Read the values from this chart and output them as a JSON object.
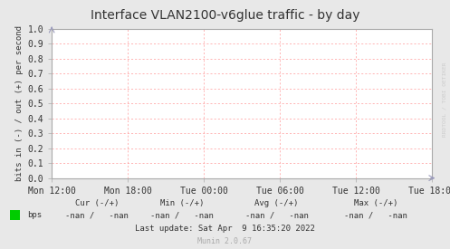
{
  "title": "Interface VLAN2100-v6glue traffic - by day",
  "ylabel": "bits in (-) / out (+) per second",
  "bg_color": "#e8e8e8",
  "plot_bg_color": "#ffffff",
  "grid_color": "#ff9999",
  "border_color": "#aaaaaa",
  "ylim": [
    0.0,
    1.0
  ],
  "yticks": [
    0.0,
    0.1,
    0.2,
    0.3,
    0.4,
    0.5,
    0.6,
    0.7,
    0.8,
    0.9,
    1.0
  ],
  "xtick_labels": [
    "Mon 12:00",
    "Mon 18:00",
    "Tue 00:00",
    "Tue 06:00",
    "Tue 12:00",
    "Tue 18:00"
  ],
  "legend_color": "#00cc00",
  "legend_label": "bps",
  "cur_label": "Cur (-/+)",
  "min_label": "Min (-/+)",
  "avg_label": "Avg (-/+)",
  "max_label": "Max (-/+)",
  "cur_val": "-nan /   -nan",
  "min_val": "-nan /   -nan",
  "avg_val": "-nan /   -nan",
  "max_val": "-nan /   -nan",
  "last_update": "Last update: Sat Apr  9 16:35:20 2022",
  "munin_version": "Munin 2.0.67",
  "watermark": "RRDTOOL / TOBI OETIKER",
  "title_fontsize": 10,
  "tick_fontsize": 7,
  "arrow_color": "#9999bb"
}
